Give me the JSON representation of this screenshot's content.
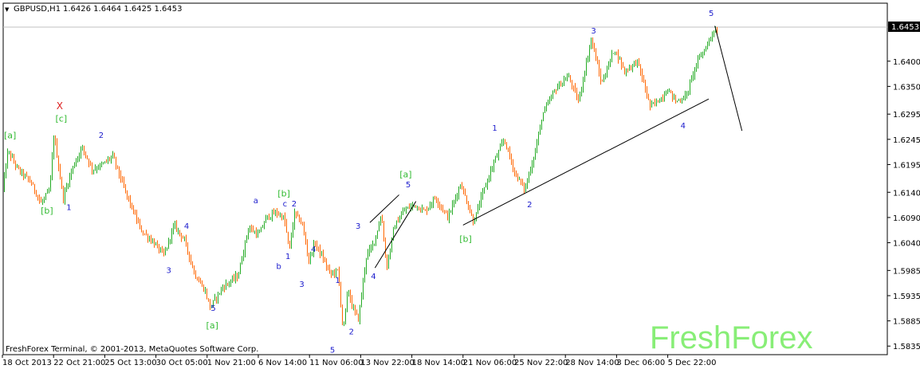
{
  "header": {
    "symbol": "GBPUSD,H1",
    "ohlc": "1.6426 1.6464 1.6425 1.6453",
    "dropdown_glyph": "▼"
  },
  "footer": {
    "copyright": "FreshForex Terminal, © 2001-2013, MetaQuotes Software Corp."
  },
  "watermark": "FreshForex",
  "colors": {
    "bull": "#22aa22",
    "bear": "#ff6600",
    "wave_minor": "#1a1acc",
    "wave_major": "#33bb33",
    "wave_x": "#dd2222",
    "axis": "#000000",
    "current_price_line": "#c0c0c0",
    "brand": "#88ee77"
  },
  "chart_data": {
    "type": "line",
    "instrument": "GBPUSD",
    "timeframe": "H1",
    "current_price": "1.6453",
    "ylim": [
      1.5818,
      1.6515
    ],
    "y_ticks": [
      "1.6400",
      "1.6350",
      "1.6295",
      "1.6245",
      "1.6195",
      "1.6140",
      "1.6090",
      "1.6040",
      "1.5985",
      "1.5935",
      "1.5885",
      "1.5835"
    ],
    "x_ticks": [
      "18 Oct 2013",
      "22 Oct 21:00",
      "25 Oct 13:00",
      "30 Oct 05:00",
      "1 Nov 21:00",
      "6 Nov 14:00",
      "11 Nov 06:00",
      "13 Nov 22:00",
      "18 Nov 14:00",
      "21 Nov 06:00",
      "25 Nov 22:00",
      "28 Nov 14:00",
      "3 Dec 06:00",
      "5 Dec 22:00"
    ],
    "x_tick_index": [
      0,
      1,
      2,
      3,
      4,
      5,
      6,
      7,
      8,
      9,
      10,
      11,
      12,
      13
    ],
    "x_tick_step": 1.0,
    "price_path": [
      [
        0.0,
        1.6145
      ],
      [
        0.1,
        1.6222
      ],
      [
        0.3,
        1.6185
      ],
      [
        0.55,
        1.616
      ],
      [
        0.75,
        1.6118
      ],
      [
        0.92,
        1.6145
      ],
      [
        1.0,
        1.6255
      ],
      [
        1.18,
        1.6128
      ],
      [
        1.35,
        1.6185
      ],
      [
        1.55,
        1.623
      ],
      [
        1.75,
        1.6185
      ],
      [
        1.95,
        1.6195
      ],
      [
        2.15,
        1.6212
      ],
      [
        2.4,
        1.614
      ],
      [
        2.7,
        1.6065
      ],
      [
        2.95,
        1.604
      ],
      [
        3.15,
        1.6015
      ],
      [
        3.35,
        1.6075
      ],
      [
        3.55,
        1.6045
      ],
      [
        3.75,
        1.5978
      ],
      [
        3.95,
        1.5945
      ],
      [
        4.05,
        1.5912
      ],
      [
        4.3,
        1.5952
      ],
      [
        4.6,
        1.5975
      ],
      [
        4.8,
        1.607
      ],
      [
        5.0,
        1.6055
      ],
      [
        5.15,
        1.609
      ],
      [
        5.35,
        1.61
      ],
      [
        5.5,
        1.6088
      ],
      [
        5.6,
        1.6025
      ],
      [
        5.7,
        1.6098
      ],
      [
        5.85,
        1.6078
      ],
      [
        5.98,
        1.6005
      ],
      [
        6.1,
        1.604
      ],
      [
        6.25,
        1.601
      ],
      [
        6.4,
        1.5978
      ],
      [
        6.55,
        1.5985
      ],
      [
        6.65,
        1.5865
      ],
      [
        6.75,
        1.595
      ],
      [
        6.82,
        1.5915
      ],
      [
        6.95,
        1.5888
      ],
      [
        7.1,
        1.6012
      ],
      [
        7.25,
        1.604
      ],
      [
        7.4,
        1.6095
      ],
      [
        7.5,
        1.599
      ],
      [
        7.65,
        1.6072
      ],
      [
        7.85,
        1.6105
      ],
      [
        8.05,
        1.6115
      ],
      [
        8.25,
        1.6102
      ],
      [
        8.45,
        1.613
      ],
      [
        8.7,
        1.609
      ],
      [
        8.95,
        1.6158
      ],
      [
        9.2,
        1.608
      ],
      [
        9.4,
        1.6145
      ],
      [
        9.6,
        1.62
      ],
      [
        9.8,
        1.6245
      ],
      [
        10.0,
        1.618
      ],
      [
        10.2,
        1.6145
      ],
      [
        10.4,
        1.622
      ],
      [
        10.55,
        1.6295
      ],
      [
        10.8,
        1.6345
      ],
      [
        11.05,
        1.637
      ],
      [
        11.25,
        1.632
      ],
      [
        11.5,
        1.6445
      ],
      [
        11.7,
        1.6355
      ],
      [
        11.95,
        1.6425
      ],
      [
        12.15,
        1.638
      ],
      [
        12.4,
        1.64
      ],
      [
        12.65,
        1.631
      ],
      [
        12.85,
        1.6325
      ],
      [
        13.0,
        1.6345
      ],
      [
        13.15,
        1.632
      ],
      [
        13.35,
        1.633
      ],
      [
        13.55,
        1.6395
      ],
      [
        13.75,
        1.643
      ],
      [
        13.9,
        1.6464
      ],
      [
        13.98,
        1.6453
      ]
    ],
    "trendlines": [
      {
        "x1": 7.18,
        "y1": 1.608,
        "x2": 7.75,
        "y2": 1.6135
      },
      {
        "x1": 7.28,
        "y1": 1.599,
        "x2": 8.08,
        "y2": 1.6122
      },
      {
        "x1": 9.0,
        "y1": 1.6075,
        "x2": 13.8,
        "y2": 1.6325
      },
      {
        "x1": 13.92,
        "y1": 1.647,
        "x2": 14.45,
        "y2": 1.6262
      }
    ],
    "wave_labels": [
      {
        "text": "[a]",
        "x": 0.15,
        "y": 1.6247,
        "color": "green"
      },
      {
        "text": "[b]",
        "x": 0.87,
        "y": 1.6098,
        "color": "green"
      },
      {
        "text": "[c]",
        "x": 1.15,
        "y": 1.628,
        "color": "green"
      },
      {
        "text": "X",
        "x": 1.12,
        "y": 1.6305,
        "color": "red"
      },
      {
        "text": "1",
        "x": 1.3,
        "y": 1.6105,
        "color": "blue"
      },
      {
        "text": "2",
        "x": 1.93,
        "y": 1.6248,
        "color": "blue"
      },
      {
        "text": "3",
        "x": 3.25,
        "y": 1.598,
        "color": "blue"
      },
      {
        "text": "4",
        "x": 3.6,
        "y": 1.6068,
        "color": "blue"
      },
      {
        "text": "5",
        "x": 4.12,
        "y": 1.5905,
        "color": "blue"
      },
      {
        "text": "[a]",
        "x": 4.1,
        "y": 1.587,
        "color": "green"
      },
      {
        "text": "a",
        "x": 4.95,
        "y": 1.6118,
        "color": "blue"
      },
      {
        "text": "b",
        "x": 5.4,
        "y": 1.5988,
        "color": "blue"
      },
      {
        "text": "[b]",
        "x": 5.5,
        "y": 1.6132,
        "color": "green"
      },
      {
        "text": "c",
        "x": 5.52,
        "y": 1.6112,
        "color": "blue"
      },
      {
        "text": "2",
        "x": 5.7,
        "y": 1.6112,
        "color": "blue"
      },
      {
        "text": "1",
        "x": 5.58,
        "y": 1.6008,
        "color": "blue"
      },
      {
        "text": "3",
        "x": 5.85,
        "y": 1.5952,
        "color": "blue"
      },
      {
        "text": "4",
        "x": 6.08,
        "y": 1.6022,
        "color": "blue"
      },
      {
        "text": "1",
        "x": 6.55,
        "y": 1.596,
        "color": "blue"
      },
      {
        "text": "5",
        "x": 6.45,
        "y": 1.5822,
        "color": "blue"
      },
      {
        "text": "2",
        "x": 6.82,
        "y": 1.5858,
        "color": "blue"
      },
      {
        "text": "3",
        "x": 6.95,
        "y": 1.6068,
        "color": "blue"
      },
      {
        "text": "4",
        "x": 7.25,
        "y": 1.5968,
        "color": "blue"
      },
      {
        "text": "[a]",
        "x": 7.88,
        "y": 1.617,
        "color": "green"
      },
      {
        "text": "5",
        "x": 7.93,
        "y": 1.615,
        "color": "blue"
      },
      {
        "text": "[b]",
        "x": 9.05,
        "y": 1.6042,
        "color": "green"
      },
      {
        "text": "1",
        "x": 9.62,
        "y": 1.6262,
        "color": "blue"
      },
      {
        "text": "2",
        "x": 10.3,
        "y": 1.611,
        "color": "blue"
      },
      {
        "text": "3",
        "x": 11.55,
        "y": 1.6455,
        "color": "blue"
      },
      {
        "text": "4",
        "x": 13.3,
        "y": 1.6267,
        "color": "blue"
      },
      {
        "text": "5",
        "x": 13.85,
        "y": 1.649,
        "color": "blue"
      }
    ]
  }
}
